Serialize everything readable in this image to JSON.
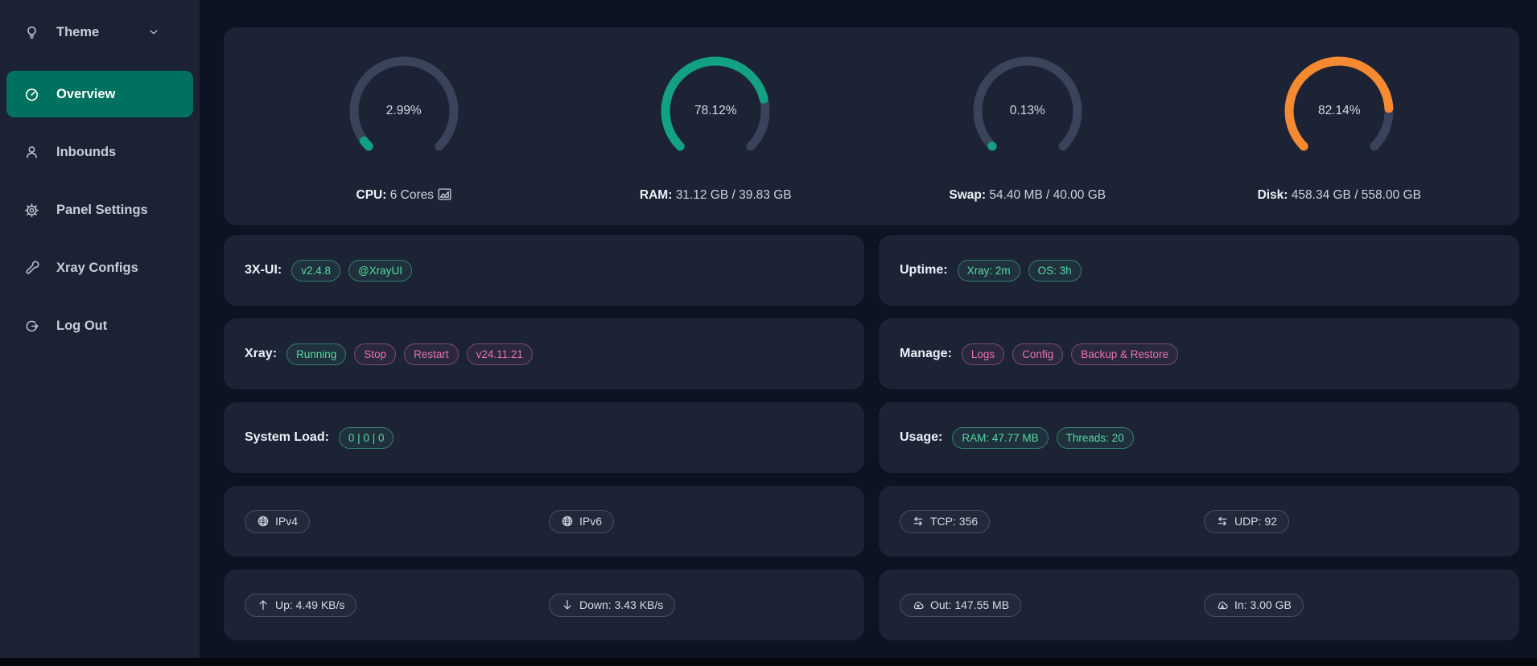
{
  "colors": {
    "accent_teal": "#00715e",
    "gauge_green": "#12a182",
    "gauge_orange": "#f78a31",
    "gauge_track": "#3a4359",
    "tag_green": "#58d9a3",
    "tag_pink": "#e873b2",
    "card_bg": "#1b2335",
    "sidebar_bg": "#1a2234",
    "page_bg": "#0d1322"
  },
  "sidebar": {
    "items": [
      {
        "label": "Theme"
      },
      {
        "label": "Overview"
      },
      {
        "label": "Inbounds"
      },
      {
        "label": "Panel Settings"
      },
      {
        "label": "Xray Configs"
      },
      {
        "label": "Log Out"
      }
    ]
  },
  "gauges": [
    {
      "id": "cpu",
      "percent": 2.99,
      "display": "2.99%",
      "color": "#12a182",
      "label": "CPU:",
      "value": "6 Cores"
    },
    {
      "id": "ram",
      "percent": 78.12,
      "display": "78.12%",
      "color": "#12a182",
      "label": "RAM:",
      "value": "31.12 GB / 39.83 GB"
    },
    {
      "id": "swap",
      "percent": 0.13,
      "display": "0.13%",
      "color": "#12a182",
      "label": "Swap:",
      "value": "54.40 MB / 40.00 GB"
    },
    {
      "id": "disk",
      "percent": 82.14,
      "display": "82.14%",
      "color": "#f78a31",
      "label": "Disk:",
      "value": "458.34 GB / 558.00 GB"
    }
  ],
  "cards": {
    "left": [
      {
        "label": "3X-UI:",
        "tags": [
          {
            "text": "v2.4.8",
            "variant": "green",
            "name": "panel-version-tag",
            "interactable": true
          },
          {
            "text": "@XrayUI",
            "variant": "green",
            "name": "telegram-channel-tag",
            "interactable": true
          }
        ]
      },
      {
        "label": "Xray:",
        "tags": [
          {
            "text": "Running",
            "variant": "green",
            "name": "xray-status-tag",
            "interactable": false
          },
          {
            "text": "Stop",
            "variant": "pink",
            "name": "xray-stop-button",
            "interactable": true
          },
          {
            "text": "Restart",
            "variant": "pink",
            "name": "xray-restart-button",
            "interactable": true
          },
          {
            "text": "v24.11.21",
            "variant": "pink",
            "name": "xray-version-tag",
            "interactable": true
          }
        ]
      },
      {
        "label": "System Load:",
        "tags": [
          {
            "text": "0 | 0 | 0",
            "variant": "green",
            "name": "system-load-tag",
            "interactable": false
          }
        ]
      }
    ],
    "right": [
      {
        "label": "Uptime:",
        "tags": [
          {
            "text": "Xray: 2m",
            "variant": "green",
            "name": "xray-uptime-tag",
            "interactable": false
          },
          {
            "text": "OS: 3h",
            "variant": "green",
            "name": "os-uptime-tag",
            "interactable": false
          }
        ]
      },
      {
        "label": "Manage:",
        "tags": [
          {
            "text": "Logs",
            "variant": "pink",
            "name": "logs-button",
            "interactable": true
          },
          {
            "text": "Config",
            "variant": "pink",
            "name": "config-button",
            "interactable": true
          },
          {
            "text": "Backup & Restore",
            "variant": "pink",
            "name": "backup-restore-button",
            "interactable": true
          }
        ]
      },
      {
        "label": "Usage:",
        "tags": [
          {
            "text": "RAM: 47.77 MB",
            "variant": "green",
            "name": "panel-ram-usage-tag",
            "interactable": false
          },
          {
            "text": "Threads: 20",
            "variant": "green",
            "name": "threads-tag",
            "interactable": false
          }
        ]
      }
    ],
    "pill_rows": [
      {
        "side": "left",
        "pills": [
          {
            "icon": "globe-icon",
            "text": "IPv4",
            "name": "ipv4-pill",
            "interactable": true
          },
          {
            "icon": "globe-icon",
            "text": "IPv6",
            "name": "ipv6-pill",
            "interactable": true
          }
        ]
      },
      {
        "side": "right",
        "pills": [
          {
            "icon": "swap-arrows-icon",
            "text": "TCP: 356",
            "name": "tcp-count-pill",
            "interactable": false
          },
          {
            "icon": "swap-arrows-icon",
            "text": "UDP: 92",
            "name": "udp-count-pill",
            "interactable": false
          }
        ]
      },
      {
        "side": "left",
        "pills": [
          {
            "icon": "arrow-up-icon",
            "text": "Up: 4.49 KB/s",
            "name": "upload-speed-pill",
            "interactable": false
          },
          {
            "icon": "arrow-down-icon",
            "text": "Down: 3.43 KB/s",
            "name": "download-speed-pill",
            "interactable": false
          }
        ]
      },
      {
        "side": "right",
        "pills": [
          {
            "icon": "cloud-up-icon",
            "text": "Out: 147.55 MB",
            "name": "traffic-out-pill",
            "interactable": false
          },
          {
            "icon": "cloud-down-icon",
            "text": "In: 3.00 GB",
            "name": "traffic-in-pill",
            "interactable": false
          }
        ]
      }
    ]
  }
}
